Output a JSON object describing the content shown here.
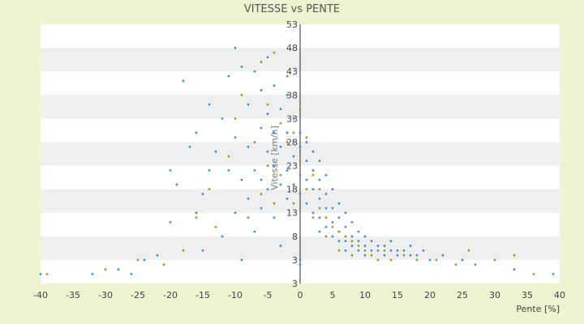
{
  "chart_data": {
    "type": "scatter",
    "title": "VITESSE vs PENTE",
    "xlabel": "Pente [%]",
    "ylabel": "Vitesse [km/h]",
    "xlim": [
      -40,
      40
    ],
    "ylim": [
      -2,
      53
    ],
    "x_ticks": [
      "-40",
      "-35",
      "-30",
      "-25",
      "-20",
      "-15",
      "-10",
      "-5",
      "0",
      "5",
      "10",
      "15",
      "20",
      "25",
      "30",
      "35",
      "40"
    ],
    "y_ticks": [
      "3",
      "3",
      "8",
      "13",
      "18",
      "23",
      "28",
      "33",
      "38",
      "43",
      "48",
      "53"
    ],
    "grid": "horizontal bands",
    "legend": "none",
    "colors": {
      "series_a": "#3a8fd6",
      "series_b": "#a39a10",
      "axis": "#2a2a2a",
      "band": "#efefef"
    },
    "series": [
      {
        "color": "#3a8fd6",
        "points": [
          [
            -40,
            0
          ],
          [
            -32,
            0
          ],
          [
            -28,
            1
          ],
          [
            -26,
            0
          ],
          [
            -24,
            3
          ],
          [
            -22,
            4
          ],
          [
            -20,
            11
          ],
          [
            -20,
            22
          ],
          [
            -19,
            19
          ],
          [
            -18,
            41
          ],
          [
            -17,
            27
          ],
          [
            -16,
            13
          ],
          [
            -16,
            30
          ],
          [
            -15,
            5
          ],
          [
            -15,
            17
          ],
          [
            -14,
            36
          ],
          [
            -14,
            22
          ],
          [
            -13,
            26
          ],
          [
            -12,
            8
          ],
          [
            -12,
            33
          ],
          [
            -11,
            42
          ],
          [
            -11,
            22
          ],
          [
            -10,
            48
          ],
          [
            -10,
            29
          ],
          [
            -10,
            13
          ],
          [
            -9,
            44
          ],
          [
            -9,
            20
          ],
          [
            -9,
            3
          ],
          [
            -8,
            16
          ],
          [
            -8,
            27
          ],
          [
            -8,
            36
          ],
          [
            -7,
            22
          ],
          [
            -7,
            9
          ],
          [
            -7,
            43
          ],
          [
            -6,
            31
          ],
          [
            -6,
            20
          ],
          [
            -6,
            14
          ],
          [
            -6,
            39
          ],
          [
            -5,
            26
          ],
          [
            -5,
            18
          ],
          [
            -5,
            46
          ],
          [
            -5,
            34
          ],
          [
            -4,
            23
          ],
          [
            -4,
            30
          ],
          [
            -4,
            12
          ],
          [
            -4,
            40
          ],
          [
            -3,
            27
          ],
          [
            -3,
            19
          ],
          [
            -3,
            35
          ],
          [
            -3,
            6
          ],
          [
            -2,
            30
          ],
          [
            -2,
            22
          ],
          [
            -2,
            16
          ],
          [
            -2,
            38
          ],
          [
            -1,
            25
          ],
          [
            -1,
            28
          ],
          [
            -1,
            19
          ],
          [
            -1,
            33
          ],
          [
            0,
            27
          ],
          [
            0,
            21
          ],
          [
            0,
            30
          ],
          [
            0,
            17
          ],
          [
            0,
            2
          ],
          [
            0,
            3
          ],
          [
            1,
            28
          ],
          [
            1,
            24
          ],
          [
            1,
            20
          ],
          [
            1,
            15
          ],
          [
            2,
            26
          ],
          [
            2,
            22
          ],
          [
            2,
            18
          ],
          [
            2,
            13
          ],
          [
            3,
            24
          ],
          [
            3,
            20
          ],
          [
            3,
            16
          ],
          [
            3,
            12
          ],
          [
            3,
            9
          ],
          [
            4,
            21
          ],
          [
            4,
            17
          ],
          [
            4,
            14
          ],
          [
            4,
            10
          ],
          [
            5,
            18
          ],
          [
            5,
            14
          ],
          [
            5,
            11
          ],
          [
            5,
            8
          ],
          [
            6,
            15
          ],
          [
            6,
            12
          ],
          [
            6,
            9
          ],
          [
            6,
            7
          ],
          [
            7,
            13
          ],
          [
            7,
            10
          ],
          [
            7,
            7
          ],
          [
            7,
            5
          ],
          [
            8,
            11
          ],
          [
            8,
            8
          ],
          [
            8,
            6
          ],
          [
            9,
            9
          ],
          [
            9,
            7
          ],
          [
            9,
            5
          ],
          [
            10,
            8
          ],
          [
            10,
            6
          ],
          [
            10,
            4
          ],
          [
            11,
            7
          ],
          [
            11,
            5
          ],
          [
            12,
            6
          ],
          [
            12,
            5
          ],
          [
            13,
            6
          ],
          [
            13,
            4
          ],
          [
            14,
            5
          ],
          [
            14,
            7
          ],
          [
            15,
            5
          ],
          [
            15,
            4
          ],
          [
            16,
            5
          ],
          [
            17,
            6
          ],
          [
            17,
            4
          ],
          [
            18,
            4
          ],
          [
            19,
            5
          ],
          [
            20,
            3
          ],
          [
            22,
            4
          ],
          [
            25,
            3
          ],
          [
            27,
            2
          ],
          [
            33,
            1
          ],
          [
            39,
            0
          ]
        ]
      },
      {
        "color": "#a39a10",
        "points": [
          [
            -39,
            0
          ],
          [
            -30,
            1
          ],
          [
            -25,
            3
          ],
          [
            -21,
            2
          ],
          [
            -18,
            5
          ],
          [
            -16,
            12
          ],
          [
            -14,
            18
          ],
          [
            -13,
            10
          ],
          [
            -11,
            25
          ],
          [
            -10,
            33
          ],
          [
            -9,
            38
          ],
          [
            -8,
            12
          ],
          [
            -7,
            28
          ],
          [
            -6,
            17
          ],
          [
            -6,
            45
          ],
          [
            -5,
            23
          ],
          [
            -5,
            36
          ],
          [
            -4,
            15
          ],
          [
            -4,
            47
          ],
          [
            -3,
            32
          ],
          [
            -3,
            21
          ],
          [
            -2,
            28
          ],
          [
            -2,
            42
          ],
          [
            -1,
            15
          ],
          [
            -1,
            30
          ],
          [
            0,
            24
          ],
          [
            0,
            35
          ],
          [
            1,
            18
          ],
          [
            1,
            29
          ],
          [
            2,
            21
          ],
          [
            2,
            12
          ],
          [
            3,
            18
          ],
          [
            3,
            14
          ],
          [
            4,
            12
          ],
          [
            4,
            8
          ],
          [
            5,
            10
          ],
          [
            6,
            9
          ],
          [
            6,
            5
          ],
          [
            7,
            8
          ],
          [
            8,
            7
          ],
          [
            8,
            4
          ],
          [
            9,
            6
          ],
          [
            10,
            5
          ],
          [
            11,
            4
          ],
          [
            12,
            3
          ],
          [
            13,
            5
          ],
          [
            14,
            3
          ],
          [
            16,
            4
          ],
          [
            18,
            3
          ],
          [
            21,
            3
          ],
          [
            24,
            2
          ],
          [
            26,
            5
          ],
          [
            30,
            3
          ],
          [
            33,
            4
          ],
          [
            36,
            0
          ]
        ]
      }
    ]
  }
}
